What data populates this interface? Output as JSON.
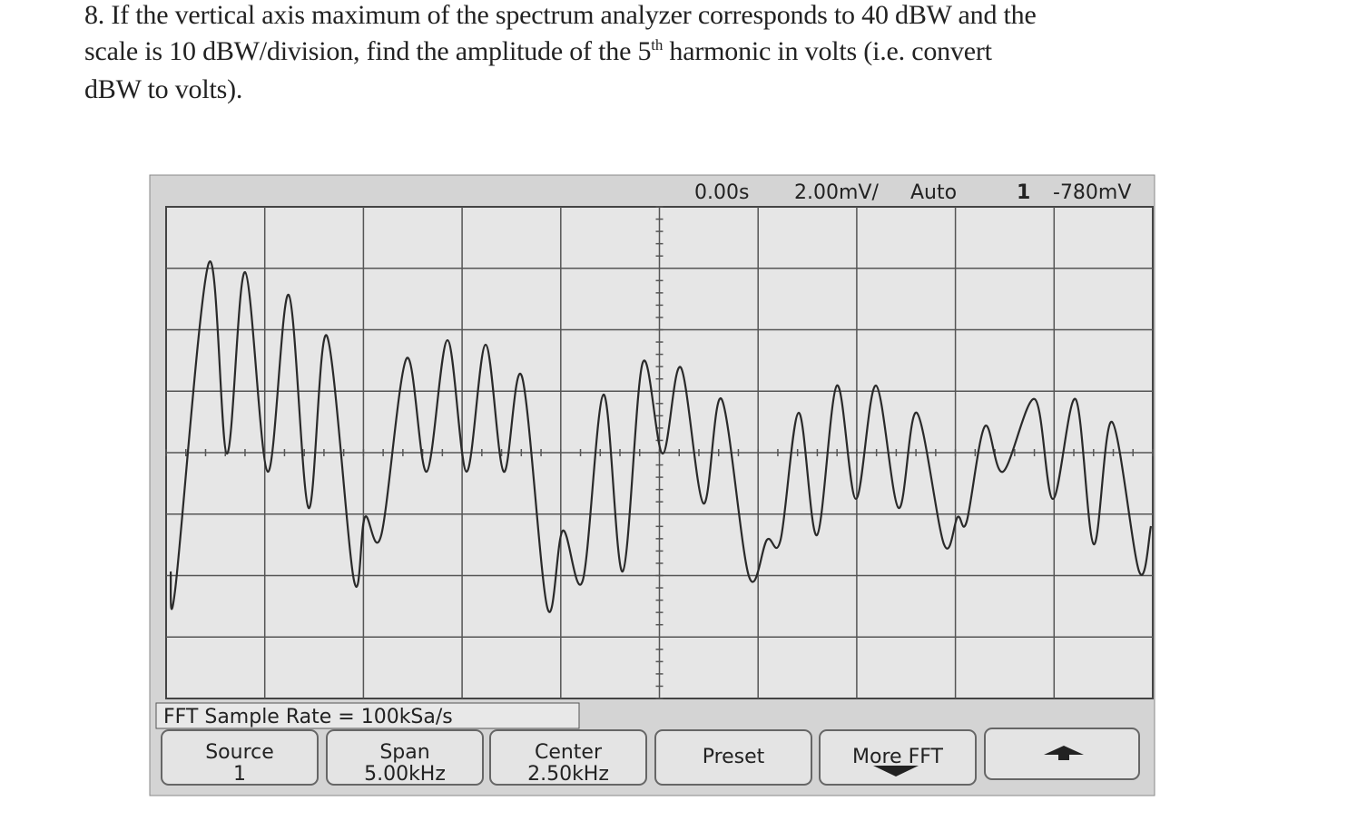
{
  "question": {
    "line1": "8. If the vertical axis maximum of the spectrum analyzer corresponds to 40 dBW and the",
    "line2_before": "scale is 10 dBW/division, find the amplitude of the 5",
    "line2_sup": "th",
    "line2_after": " harmonic in volts (i.e. convert",
    "line3": "dBW to volts)."
  },
  "scope": {
    "status": {
      "time": "0.00s",
      "scale": "2.00mV/",
      "mode": "Auto",
      "channel": "1",
      "level": "-780mV"
    },
    "info": "FFT Sample Rate = 100kSa/s",
    "softkeys": [
      {
        "label": "Source",
        "value": "1"
      },
      {
        "label": "Span",
        "value": "5.00kHz"
      },
      {
        "label": "Center",
        "value": "2.50kHz"
      },
      {
        "label": "Preset"
      },
      {
        "label": "More FFT"
      }
    ]
  }
}
